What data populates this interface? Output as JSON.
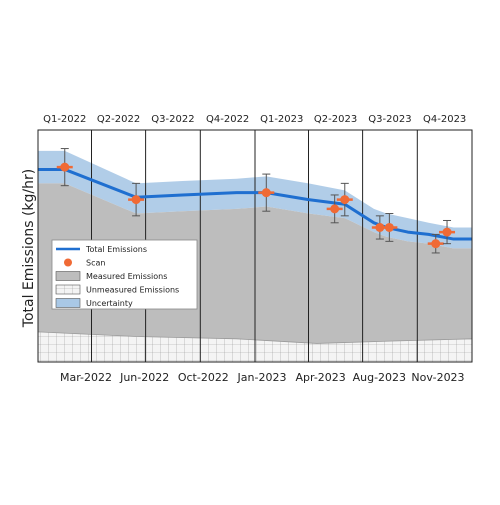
{
  "chart_data": {
    "type": "area",
    "ylabel": "Total Emissions (kg/hr)",
    "xlabel": "",
    "quarters": [
      "Q1-2022",
      "Q2-2022",
      "Q3-2022",
      "Q4-2022",
      "Q1-2023",
      "Q2-2023",
      "Q3-2023",
      "Q4-2023"
    ],
    "date_ticks": [
      "Mar-2022",
      "Jun-2022",
      "Oct-2022",
      "Jan-2023",
      "Apr-2023",
      "Aug-2023",
      "Nov-2023"
    ],
    "x_range": [
      "2022-01-01",
      "2024-01-01"
    ],
    "ylim": [
      0,
      100
    ],
    "legend_position": "left",
    "grid": false,
    "colors": {
      "total_line": "#1f6fd0",
      "scan": "#f06a35",
      "measured": "#bdbdbd",
      "unmeasured": "#f2f2f2",
      "uncertainty": "#a9c8e6"
    },
    "series": [
      {
        "name": "Total Emissions",
        "type": "line",
        "x": [
          "2022-01-01",
          "2022-02-15",
          "2022-06-15",
          "2022-09-01",
          "2022-12-01",
          "2023-01-20",
          "2023-04-01",
          "2023-06-01",
          "2023-07-20",
          "2023-08-10",
          "2023-09-15",
          "2023-10-20",
          "2023-12-01",
          "2024-01-01"
        ],
        "values": [
          83,
          83,
          71,
          72,
          73,
          73,
          70,
          68,
          60,
          58,
          56,
          55,
          53,
          53
        ]
      },
      {
        "name": "Scan",
        "type": "scatter",
        "x": [
          "2022-02-15",
          "2022-06-15",
          "2023-01-20",
          "2023-05-15",
          "2023-06-01",
          "2023-07-30",
          "2023-08-15",
          "2023-11-01",
          "2023-11-20"
        ],
        "values": [
          84,
          70,
          73,
          66,
          70,
          58,
          58,
          51,
          56
        ],
        "err": [
          8,
          7,
          8,
          6,
          7,
          5,
          6,
          4,
          5
        ]
      },
      {
        "name": "Measured Emissions",
        "type": "area",
        "x": [
          "2022-01-01",
          "2022-02-15",
          "2022-06-15",
          "2022-09-01",
          "2022-12-01",
          "2023-01-20",
          "2023-04-01",
          "2023-06-01",
          "2023-07-20",
          "2023-08-10",
          "2023-09-15",
          "2023-10-20",
          "2023-12-01",
          "2024-01-01"
        ],
        "values": [
          77,
          77,
          64,
          65,
          66,
          67,
          64,
          62,
          56,
          54,
          52,
          51,
          49,
          49
        ]
      },
      {
        "name": "Unmeasured Emissions",
        "type": "area",
        "x": [
          "2022-01-01",
          "2022-06-15",
          "2022-12-01",
          "2023-04-15",
          "2023-08-15",
          "2024-01-01"
        ],
        "values": [
          13,
          11,
          10,
          8,
          9,
          10
        ]
      },
      {
        "name": "Uncertainty",
        "type": "band",
        "x": [
          "2022-01-01",
          "2022-02-15",
          "2022-06-15",
          "2022-09-01",
          "2022-12-01",
          "2023-01-20",
          "2023-04-01",
          "2023-06-01",
          "2023-07-20",
          "2023-08-10",
          "2023-09-15",
          "2023-10-20",
          "2023-12-01",
          "2024-01-01"
        ],
        "low": [
          77,
          77,
          64,
          65,
          66,
          67,
          64,
          62,
          56,
          54,
          52,
          51,
          49,
          49
        ],
        "high": [
          91,
          91,
          77,
          78,
          79,
          80,
          77,
          74,
          66,
          64,
          62,
          60,
          58,
          58
        ]
      }
    ],
    "legend": [
      "Total Emissions",
      "Scan",
      "Measured Emissions",
      "Unmeasured Emissions",
      "Uncertainty"
    ]
  }
}
